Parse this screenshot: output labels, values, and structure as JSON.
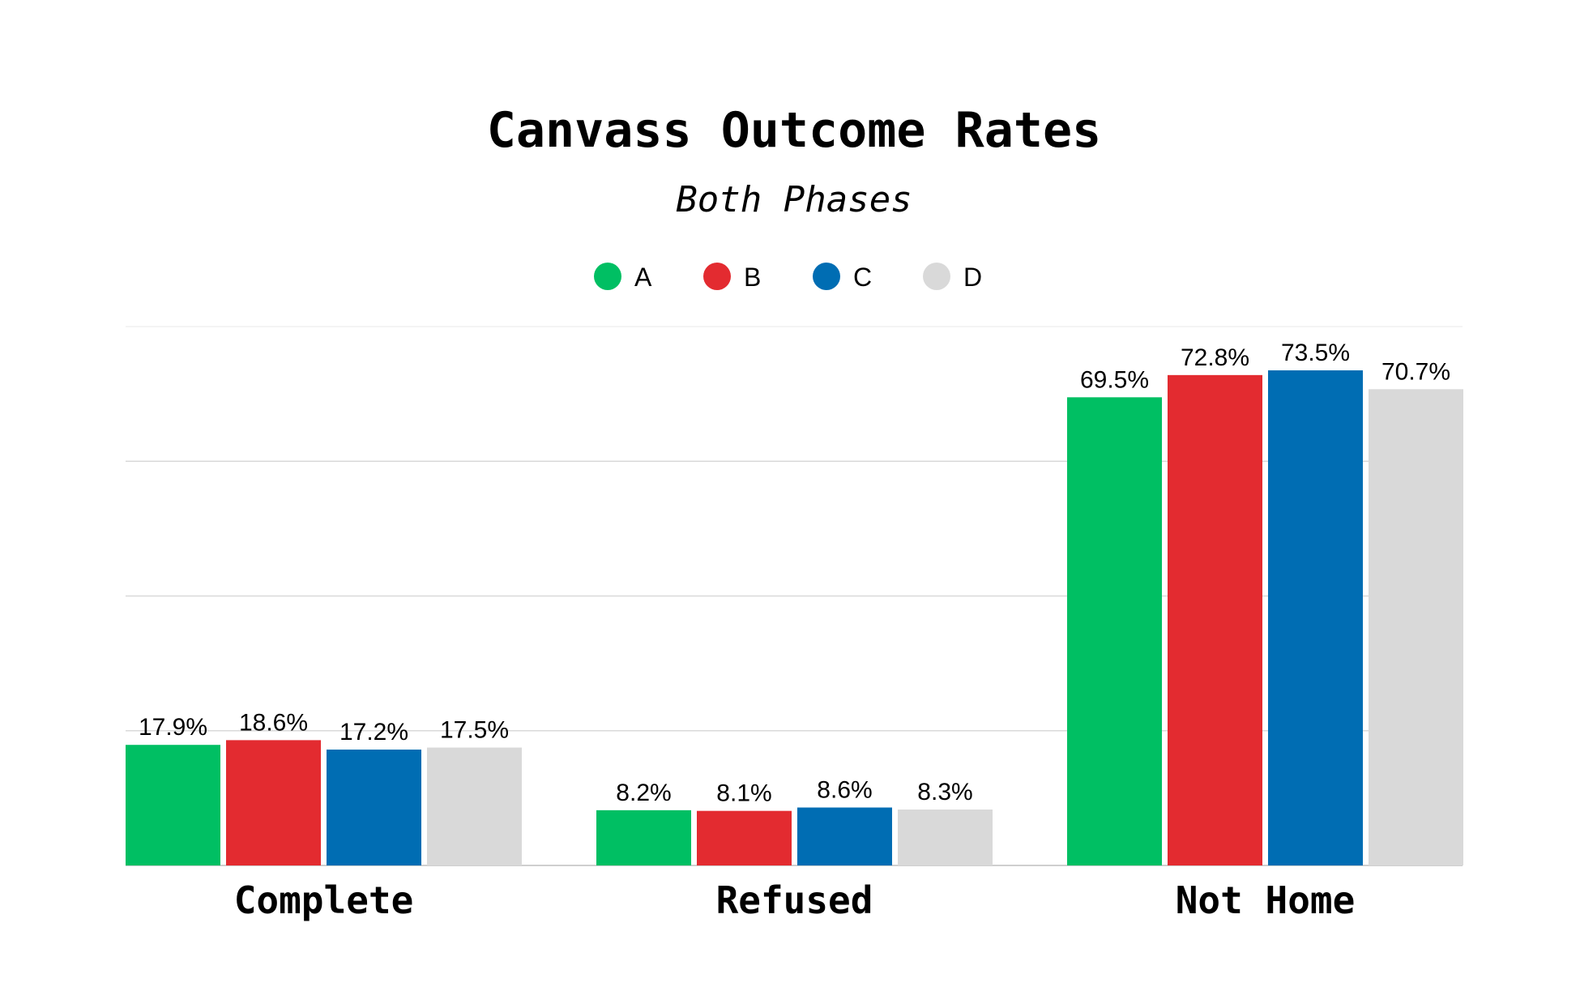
{
  "chart_data": {
    "type": "bar",
    "title": "Canvass Outcome Rates",
    "subtitle": "Both Phases",
    "xlabel": "",
    "ylabel": "",
    "ylim": [
      0,
      80
    ],
    "grid": true,
    "legend_position": "top-center",
    "categories": [
      "Complete",
      "Refused",
      "Not Home"
    ],
    "series": [
      {
        "name": "A",
        "color": "#00bf63",
        "values": [
          17.9,
          8.2,
          69.5
        ],
        "labels": [
          "17.9%",
          "8.2%",
          "69.5%"
        ]
      },
      {
        "name": "B",
        "color": "#e32b30",
        "values": [
          18.6,
          8.1,
          72.8
        ],
        "labels": [
          "18.6%",
          "8.1%",
          "72.8%"
        ]
      },
      {
        "name": "C",
        "color": "#006db3",
        "values": [
          17.2,
          8.6,
          73.5
        ],
        "labels": [
          "17.2%",
          "8.6%",
          "73.5%"
        ]
      },
      {
        "name": "D",
        "color": "#d9d9d9",
        "values": [
          17.5,
          8.3,
          70.7
        ],
        "labels": [
          "17.5%",
          "8.3%",
          "70.7%"
        ]
      }
    ]
  }
}
